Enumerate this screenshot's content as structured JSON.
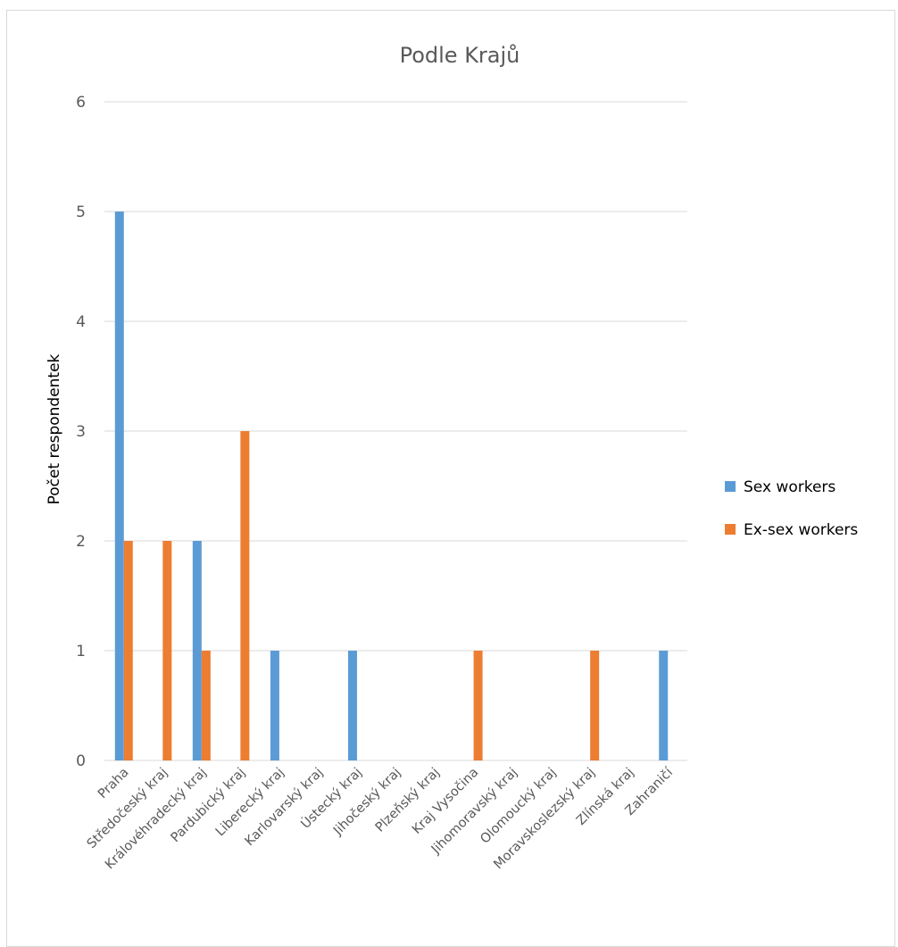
{
  "chart_data": {
    "type": "bar",
    "title": "Podle Krajů",
    "xlabel": "",
    "ylabel": "Počet respondentek",
    "ylim": [
      0,
      6
    ],
    "yticks": [
      0,
      1,
      2,
      3,
      4,
      5,
      6
    ],
    "grid": true,
    "legend_position": "right",
    "categories": [
      "Praha",
      "Středočeský kraj",
      "Královéhradecký kraj",
      "Pardubický kraj",
      "Liberecký kraj",
      "Karlovarský kraj",
      "Ústecký kraj",
      "Jihočeský kraj",
      "Plzeňský kraj",
      "Kraj Vysočina",
      "Jihomoravský kraj",
      "Olomoucký kraj",
      "Moravskoslezský kraj",
      "Zlínská kraj",
      "Zahraničí"
    ],
    "series": [
      {
        "name": "Sex workers",
        "color": "#5b9bd5",
        "values": [
          5,
          0,
          2,
          0,
          1,
          0,
          1,
          0,
          0,
          0,
          0,
          0,
          0,
          0,
          1
        ]
      },
      {
        "name": "Ex-sex workers",
        "color": "#ed7d31",
        "values": [
          2,
          2,
          1,
          3,
          0,
          0,
          0,
          0,
          0,
          1,
          0,
          0,
          1,
          0,
          0
        ]
      }
    ]
  }
}
